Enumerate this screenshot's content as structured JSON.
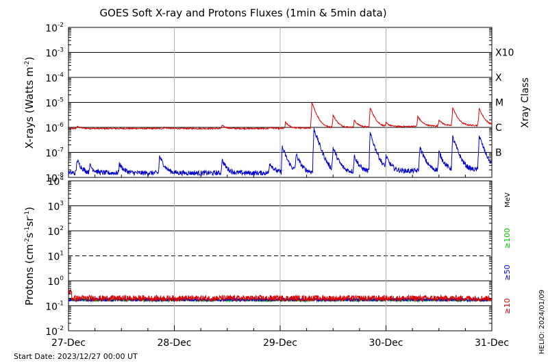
{
  "chart_data": [
    {
      "type": "line",
      "title": "GOES Soft X-ray and Protons Fluxes   (1min & 5min data)",
      "ylabel": "X-rays (Watts m",
      "ylabel_sup": "-2",
      "ylabel_tail": ")",
      "y_scale": "log",
      "ylim": [
        1e-08,
        0.01
      ],
      "y_tick_labels": [
        {
          "base": "10",
          "exp": "-2",
          "value": 0.01
        },
        {
          "base": "10",
          "exp": "-3",
          "value": 0.001
        },
        {
          "base": "10",
          "exp": "-4",
          "value": 0.0001
        },
        {
          "base": "10",
          "exp": "-5",
          "value": 1e-05
        },
        {
          "base": "10",
          "exp": "-6",
          "value": 1e-06
        },
        {
          "base": "10",
          "exp": "-7",
          "value": 1e-07
        },
        {
          "base": "10",
          "exp": "-8",
          "value": 1e-08
        }
      ],
      "right_axis_label": "Xray Class",
      "class_labels": [
        {
          "label": "X10",
          "value": 0.001
        },
        {
          "label": "X",
          "value": 0.0001
        },
        {
          "label": "M",
          "value": 1e-05
        },
        {
          "label": "C",
          "value": 1e-06
        },
        {
          "label": "B",
          "value": 1e-07
        }
      ],
      "xlim": [
        "2023-12-27",
        "2023-12-31"
      ],
      "series": [
        {
          "color": "#dd0000",
          "baseline": 9e-07,
          "peaks": [
            {
              "day": 0.08,
              "value": 1.1e-06
            },
            {
              "day": 0.9,
              "value": 1e-06
            },
            {
              "day": 1.45,
              "value": 1.2e-06
            },
            {
              "day": 1.9,
              "value": 1e-06
            },
            {
              "day": 2.05,
              "value": 1.6e-06
            },
            {
              "day": 2.3,
              "value": 9.5e-06
            },
            {
              "day": 2.5,
              "value": 3e-06
            },
            {
              "day": 2.7,
              "value": 1.8e-06
            },
            {
              "day": 2.85,
              "value": 6e-06
            },
            {
              "day": 3.0,
              "value": 1.3e-06
            },
            {
              "day": 3.3,
              "value": 2.6e-06
            },
            {
              "day": 3.5,
              "value": 1.8e-06
            },
            {
              "day": 3.63,
              "value": 6e-06
            },
            {
              "day": 3.88,
              "value": 5.5e-06
            }
          ]
        },
        {
          "color": "#0000cc",
          "baseline": 1.5e-08,
          "peaks": [
            {
              "day": 0.08,
              "value": 5e-08
            },
            {
              "day": 0.2,
              "value": 3e-08
            },
            {
              "day": 0.48,
              "value": 3.5e-08
            },
            {
              "day": 0.86,
              "value": 7e-08
            },
            {
              "day": 1.45,
              "value": 5e-08
            },
            {
              "day": 1.9,
              "value": 4e-08
            },
            {
              "day": 2.02,
              "value": 1.6e-07
            },
            {
              "day": 2.15,
              "value": 8e-08
            },
            {
              "day": 2.32,
              "value": 8.5e-07
            },
            {
              "day": 2.5,
              "value": 1.5e-07
            },
            {
              "day": 2.7,
              "value": 7e-08
            },
            {
              "day": 2.85,
              "value": 5.5e-07
            },
            {
              "day": 3.0,
              "value": 6e-08
            },
            {
              "day": 3.32,
              "value": 1.6e-07
            },
            {
              "day": 3.5,
              "value": 1e-07
            },
            {
              "day": 3.63,
              "value": 4e-07
            },
            {
              "day": 3.88,
              "value": 4.5e-07
            }
          ]
        }
      ]
    },
    {
      "type": "line",
      "ylabel": "Protons (cm",
      "ylabel_sup1": "-2",
      "ylabel_mid": "s",
      "ylabel_sup2": "-1",
      "ylabel_mid2": "sr",
      "ylabel_sup3": "-1",
      "ylabel_tail": ")",
      "y_scale": "log",
      "ylim": [
        0.01,
        10000
      ],
      "y_tick_labels": [
        {
          "base": "10",
          "exp": "4",
          "value": 10000.0
        },
        {
          "base": "10",
          "exp": "3",
          "value": 1000.0
        },
        {
          "base": "10",
          "exp": "2",
          "value": 100.0
        },
        {
          "base": "10",
          "exp": "1",
          "value": 10.0
        },
        {
          "base": "10",
          "exp": "0",
          "value": 1.0
        },
        {
          "base": "10",
          "exp": "-1",
          "value": 0.1
        },
        {
          "base": "10",
          "exp": "-2",
          "value": 0.01
        }
      ],
      "threshold_value": 10,
      "energy_unit": "MeV",
      "energy_labels": [
        {
          "label": "≥100",
          "color": "#00cc00"
        },
        {
          "label": "≥50",
          "color": "#0000cc"
        },
        {
          "label": "≥10",
          "color": "#dd0000"
        }
      ],
      "x_tick_labels": [
        "27-Dec",
        "28-Dec",
        "29-Dec",
        "30-Dec",
        "31-Dec"
      ],
      "series": [
        {
          "color": "#00cc00",
          "baseline": 0.17
        },
        {
          "color": "#0000cc",
          "baseline": 0.175
        },
        {
          "color": "#dd0000",
          "baseline": 0.2
        }
      ]
    }
  ],
  "footer": {
    "start_date": "Start Date: 2023/12/27 00:00 UT",
    "stamp": "HELIO: 2024/01/09"
  }
}
